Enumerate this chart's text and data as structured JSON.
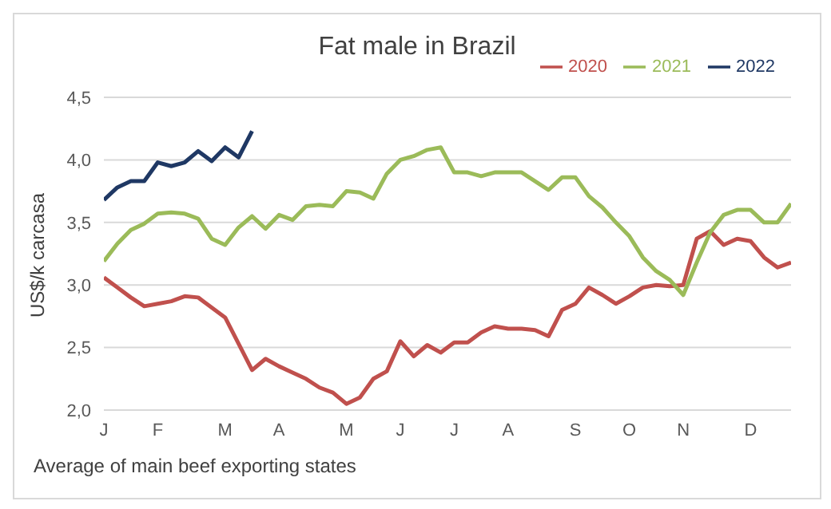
{
  "chart_data": {
    "type": "line",
    "title": "Fat male in Brazil",
    "ylabel": "US$/k carcasa",
    "annotations": [
      "Average of main beef exporting states"
    ],
    "categories": [
      "J",
      null,
      null,
      null,
      "F",
      null,
      null,
      null,
      null,
      "M",
      null,
      null,
      null,
      "A",
      null,
      null,
      null,
      null,
      "M",
      null,
      null,
      null,
      "J",
      null,
      null,
      null,
      "J",
      null,
      null,
      null,
      "A",
      null,
      null,
      null,
      null,
      "S",
      null,
      null,
      null,
      "O",
      null,
      null,
      null,
      "N",
      null,
      null,
      null,
      null,
      "D",
      null,
      null,
      null
    ],
    "ylim": [
      2,
      4.5
    ],
    "yticks": [
      {
        "value": 2,
        "label": "2,0"
      },
      {
        "value": 2.5,
        "label": "2,5"
      },
      {
        "value": 3,
        "label": "3,0"
      },
      {
        "value": 3.5,
        "label": "3,5"
      },
      {
        "value": 4,
        "label": "4,0"
      },
      {
        "value": 4.5,
        "label": "4,5"
      }
    ],
    "grid": "y",
    "legend": "top right",
    "marker": "none",
    "line_style": "solid",
    "series": [
      {
        "name": "2020",
        "color": "#c0504d",
        "values": [
          3.06,
          2.98,
          2.9,
          2.83,
          2.85,
          2.87,
          2.91,
          2.9,
          2.82,
          2.74,
          2.53,
          2.32,
          2.41,
          2.35,
          2.3,
          2.25,
          2.18,
          2.14,
          2.05,
          2.1,
          2.25,
          2.31,
          2.55,
          2.43,
          2.52,
          2.46,
          2.54,
          2.54,
          2.62,
          2.67,
          2.65,
          2.65,
          2.64,
          2.59,
          2.8,
          2.85,
          2.98,
          2.92,
          2.85,
          2.91,
          2.98,
          3.0,
          2.99,
          3.0,
          3.37,
          3.43,
          3.32,
          3.37,
          3.35,
          3.22,
          3.14,
          3.18
        ]
      },
      {
        "name": "2021",
        "color": "#9bbb59",
        "values": [
          3.19,
          3.33,
          3.44,
          3.49,
          3.57,
          3.58,
          3.57,
          3.53,
          3.37,
          3.32,
          3.46,
          3.55,
          3.45,
          3.56,
          3.52,
          3.63,
          3.64,
          3.63,
          3.75,
          3.74,
          3.69,
          3.89,
          4.0,
          4.03,
          4.08,
          4.1,
          3.9,
          3.9,
          3.87,
          3.9,
          3.9,
          3.9,
          3.83,
          3.76,
          3.86,
          3.86,
          3.71,
          3.62,
          3.5,
          3.39,
          3.22,
          3.11,
          3.04,
          2.92,
          3.18,
          3.42,
          3.56,
          3.6,
          3.6,
          3.5,
          3.5,
          3.65
        ]
      },
      {
        "name": "2022",
        "color": "#1f3864",
        "values": [
          3.68,
          3.78,
          3.83,
          3.83,
          3.98,
          3.95,
          3.98,
          4.07,
          3.99,
          4.1,
          4.02,
          4.23,
          null,
          null,
          null,
          null,
          null,
          null,
          null,
          null,
          null,
          null,
          null,
          null,
          null,
          null,
          null,
          null,
          null,
          null,
          null,
          null,
          null,
          null,
          null,
          null,
          null,
          null,
          null,
          null,
          null,
          null,
          null,
          null,
          null,
          null,
          null,
          null,
          null,
          null,
          null,
          null
        ]
      }
    ]
  }
}
